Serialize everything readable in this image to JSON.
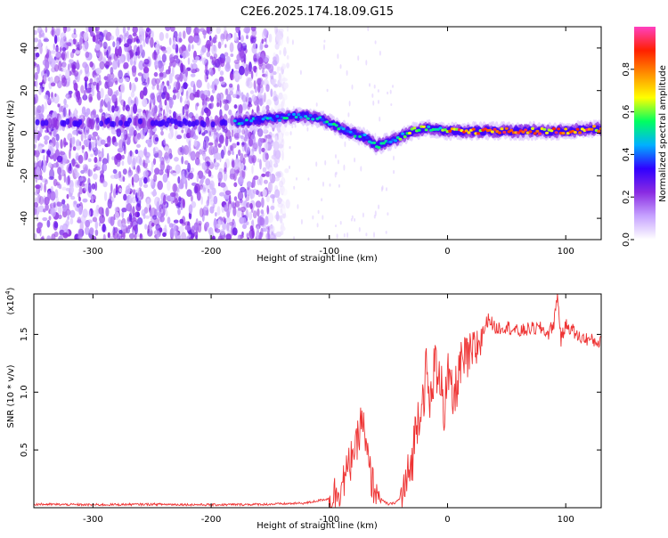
{
  "chart_data": [
    {
      "type": "heatmap",
      "title": "C2E6.2025.174.18.09.G15",
      "xlabel": "Height of straight line (km)",
      "ylabel": "Frequency (Hz)",
      "xlim": [
        -350,
        130
      ],
      "ylim": [
        -50,
        50
      ],
      "xticks": [
        -300,
        -200,
        -100,
        0,
        100
      ],
      "yticks": [
        -40,
        -20,
        0,
        20,
        40
      ],
      "colorbar": {
        "label": "Normalized spectral amplitude",
        "range": [
          0,
          1
        ],
        "ticks": [
          0.0,
          0.2,
          0.4,
          0.6,
          0.8
        ],
        "colors": [
          "#ffffff",
          "#c6a2ff",
          "#8a2be2",
          "#3000ff",
          "#00b0ff",
          "#00ff60",
          "#ffff00",
          "#ff9000",
          "#ff2000",
          "#ff40c0"
        ]
      },
      "ridge": {
        "x": [
          -180,
          -165,
          -150,
          -140,
          -130,
          -120,
          -110,
          -100,
          -90,
          -80,
          -70,
          -60,
          -50,
          -40,
          -30,
          -20,
          -10,
          0,
          20,
          40,
          60,
          80,
          100,
          125
        ],
        "y": [
          5,
          6,
          7,
          7,
          8,
          8,
          7,
          5,
          2,
          0,
          -2,
          -6,
          -4,
          -2,
          1,
          2,
          2,
          1,
          1,
          1,
          1,
          1,
          1,
          2
        ]
      }
    },
    {
      "type": "line",
      "xlabel": "Height of straight line (km)",
      "ylabel": "SNR (10 * v/v)",
      "ylabel_multiplier": "(x10",
      "ylabel_multiplier_exp": "4",
      "ylabel_multiplier_close": ")",
      "xlim": [
        -350,
        130
      ],
      "ylim": [
        0,
        1.85
      ],
      "xticks": [
        -300,
        -200,
        -100,
        0,
        100
      ],
      "yticks": [
        0.5,
        1.0,
        1.5
      ],
      "ytick_labels": [
        "0.5",
        "1.0",
        "1.5"
      ],
      "series": [
        {
          "color": "#ee3333",
          "x": [
            -350,
            -300,
            -250,
            -200,
            -150,
            -120,
            -110,
            -100,
            -95,
            -90,
            -85,
            -82,
            -80,
            -78,
            -75,
            -72,
            -70,
            -67,
            -65,
            -60,
            -55,
            -50,
            -45,
            -40,
            -35,
            -30,
            -28,
            -25,
            -20,
            -18,
            -15,
            -12,
            -10,
            -8,
            -5,
            -3,
            0,
            5,
            10,
            15,
            20,
            25,
            30,
            35,
            40,
            50,
            60,
            70,
            80,
            85,
            90,
            93,
            96,
            100,
            105,
            110,
            118,
            125,
            130
          ],
          "y": [
            0.03,
            0.025,
            0.03,
            0.025,
            0.03,
            0.04,
            0.06,
            0.08,
            0.12,
            0.2,
            0.3,
            0.4,
            0.55,
            0.45,
            0.65,
            0.8,
            0.55,
            0.4,
            0.25,
            0.15,
            0.06,
            0.03,
            0.04,
            0.08,
            0.2,
            0.4,
            0.6,
            0.8,
            1.0,
            1.2,
            0.85,
            1.15,
            1.3,
            1.0,
            1.2,
            0.8,
            1.15,
            0.9,
            1.2,
            1.28,
            1.3,
            1.4,
            1.52,
            1.65,
            1.55,
            1.57,
            1.52,
            1.55,
            1.55,
            1.5,
            1.6,
            1.85,
            1.45,
            1.58,
            1.55,
            1.48,
            1.46,
            1.44,
            1.43
          ]
        }
      ]
    }
  ]
}
